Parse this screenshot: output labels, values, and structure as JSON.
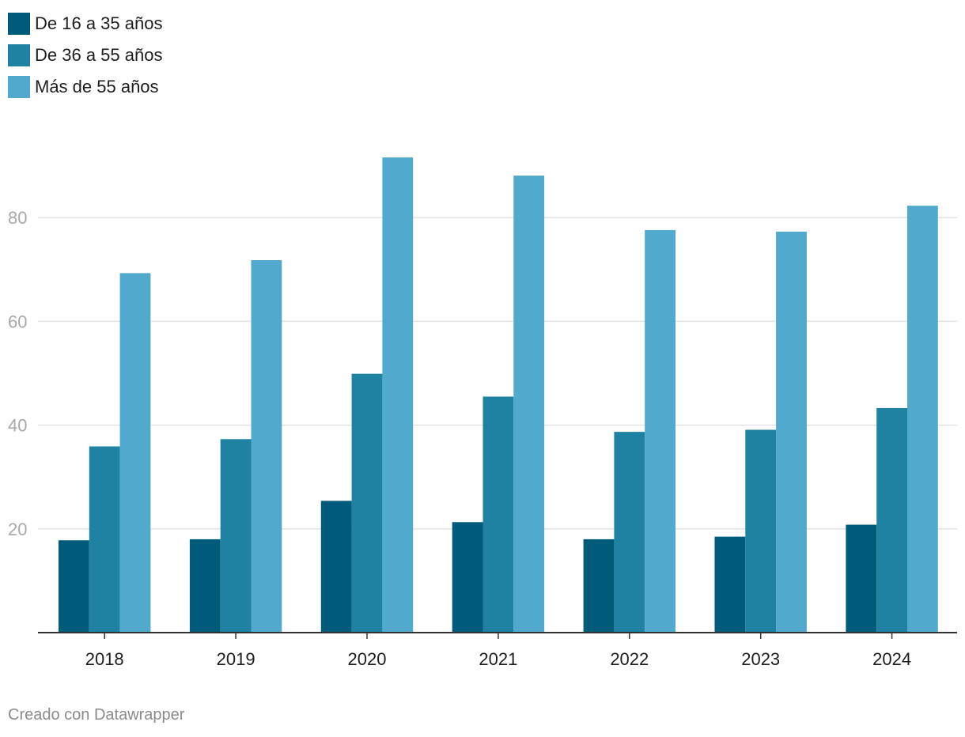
{
  "chart_data": {
    "type": "bar",
    "categories": [
      "2018",
      "2019",
      "2020",
      "2021",
      "2022",
      "2023",
      "2024"
    ],
    "series": [
      {
        "name": "De 16 a 35 años",
        "color": "#005b7b",
        "values": [
          17.8,
          18.0,
          25.4,
          21.3,
          18.0,
          18.5,
          20.8
        ]
      },
      {
        "name": "De 36 a 55 años",
        "color": "#1f82a3",
        "values": [
          35.9,
          37.3,
          49.9,
          45.5,
          38.7,
          39.1,
          43.3
        ]
      },
      {
        "name": "Más de 55 años",
        "color": "#51a9cd",
        "values": [
          69.3,
          71.8,
          91.6,
          88.1,
          77.6,
          77.3,
          82.3
        ]
      }
    ],
    "yticks": [
      "20",
      "40",
      "60",
      "80"
    ],
    "ylim": [
      0,
      100
    ],
    "title": "",
    "xlabel": "",
    "ylabel": "",
    "legend_position": "top-left",
    "grid": true
  },
  "footer": "Creado con Datawrapper"
}
